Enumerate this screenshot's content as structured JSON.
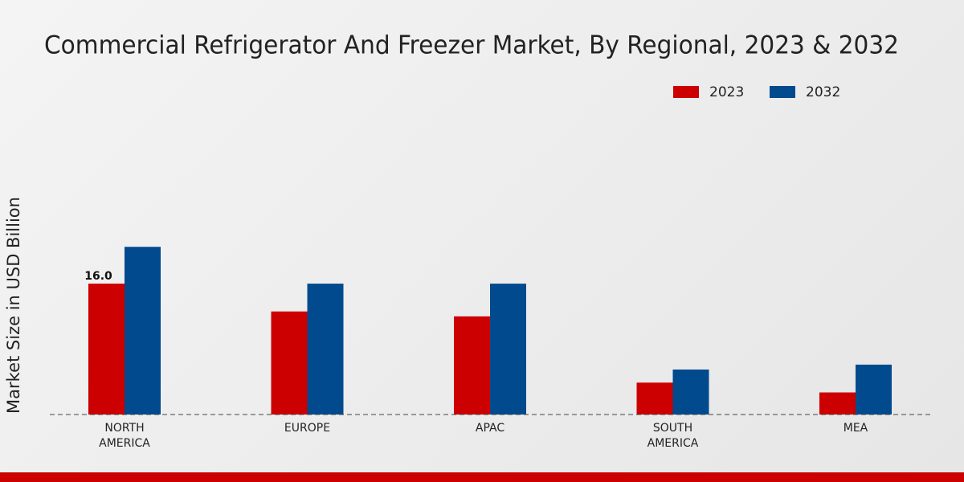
{
  "chart_data": {
    "type": "bar",
    "title": "Commercial Refrigerator And Freezer Market, By Regional, 2023 & 2032",
    "y_label": "Market Size in USD Billion",
    "categories": [
      "NORTH AMERICA",
      "EUROPE",
      "APAC",
      "SOUTH AMERICA",
      "MEA"
    ],
    "series": [
      {
        "name": "2023",
        "color": "#cc0000",
        "values": [
          16.0,
          12.6,
          12.0,
          3.9,
          2.7
        ],
        "value_labels": [
          "16.0",
          null,
          null,
          null,
          null
        ]
      },
      {
        "name": "2032",
        "color": "#004a8d",
        "values": [
          20.5,
          16.0,
          16.0,
          5.5,
          6.1
        ]
      }
    ],
    "ylim": [
      0,
      22
    ],
    "legend": "top-right"
  }
}
